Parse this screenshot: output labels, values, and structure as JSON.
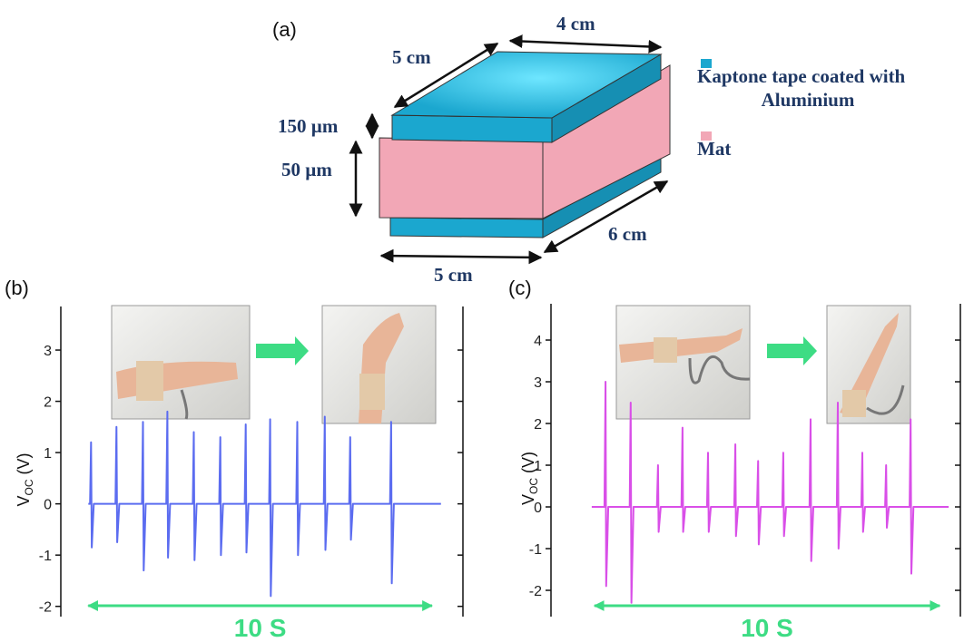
{
  "figure_a": {
    "panel_label": "(a)",
    "dimensions": {
      "top_width": "4 cm",
      "top_depth": "5 cm",
      "tape_thickness": "150 µm",
      "mat_thickness": "50 µm",
      "bottom_depth": "6 cm",
      "bottom_width": "5 cm"
    },
    "legend": [
      {
        "label": [
          "Kaptone tape coated with",
          "Aluminium"
        ],
        "color": "#1ba7cf"
      },
      {
        "label": [
          "Mat"
        ],
        "color": "#f2a7b6"
      }
    ]
  },
  "chart_data": [
    {
      "type": "line",
      "panel_label": "(b)",
      "ylabel": [
        "V",
        "OC",
        "(V)"
      ],
      "annotation": "10 S",
      "annotation_span": [
        0,
        10
      ],
      "xlim": [
        -0.8,
        10.9
      ],
      "ylim": [
        -2.2,
        3.85
      ],
      "yticks": [
        -2,
        -1,
        0,
        1,
        2,
        3
      ],
      "series": [
        {
          "color": "#5b6cf0",
          "x": [
            0,
            0.05,
            0.08,
            0.1,
            0.16,
            0.79,
            0.82,
            0.84,
            0.9,
            1.56,
            1.59,
            1.61,
            1.67,
            2.27,
            2.3,
            2.32,
            2.38,
            3.04,
            3.07,
            3.09,
            3.15,
            3.81,
            3.84,
            3.86,
            3.92,
            4.55,
            4.58,
            4.6,
            4.66,
            5.26,
            5.29,
            5.31,
            5.37,
            6.05,
            6.08,
            6.1,
            6.16,
            6.85,
            6.88,
            6.9,
            6.96,
            7.59,
            7.62,
            7.64,
            7.7,
            8.78,
            8.81,
            8.83,
            8.89,
            10.26
          ],
          "values": [
            0,
            0,
            1.2,
            -0.85,
            0,
            0,
            1.5,
            -0.75,
            0,
            0,
            1.6,
            -1.3,
            0,
            0,
            1.8,
            -1.05,
            0,
            0,
            1.4,
            -1.1,
            0,
            0,
            1.3,
            -1.0,
            0,
            0,
            1.55,
            -0.95,
            0,
            0,
            1.65,
            -1.8,
            0,
            0,
            1.6,
            -1.0,
            0,
            0,
            1.7,
            -0.9,
            0,
            0,
            1.3,
            -0.7,
            0,
            0,
            1.6,
            -1.55,
            0,
            0
          ]
        }
      ]
    },
    {
      "type": "line",
      "panel_label": "(c)",
      "ylabel": [
        "V",
        "OC",
        "(V)"
      ],
      "annotation": "10 S",
      "annotation_span": [
        0,
        10
      ],
      "xlim": [
        -1.26,
        10.6
      ],
      "ylim": [
        -2.63,
        4.87
      ],
      "yticks": [
        -2,
        -1,
        0,
        1,
        2,
        3,
        4
      ],
      "series": [
        {
          "color": "#d94fe8",
          "x": [
            -0.08,
            0.29,
            0.32,
            0.34,
            0.4,
            1.02,
            1.05,
            1.07,
            1.13,
            1.81,
            1.84,
            1.86,
            1.92,
            2.52,
            2.55,
            2.57,
            2.63,
            3.26,
            3.29,
            3.31,
            3.37,
            4.05,
            4.08,
            4.1,
            4.16,
            4.71,
            4.74,
            4.76,
            4.82,
            5.44,
            5.47,
            5.49,
            5.55,
            6.23,
            6.26,
            6.28,
            6.34,
            7.02,
            7.05,
            7.07,
            7.13,
            7.73,
            7.76,
            7.78,
            7.84,
            8.42,
            8.45,
            8.47,
            8.53,
            9.13,
            9.16,
            9.18,
            9.24,
            10.26
          ],
          "values": [
            0,
            0,
            3.0,
            -1.9,
            0,
            0,
            2.5,
            -2.3,
            0,
            0,
            1.0,
            -0.6,
            0,
            0,
            1.9,
            -0.6,
            0,
            0,
            1.3,
            -0.6,
            0,
            0,
            1.5,
            -0.7,
            0,
            0,
            1.1,
            -0.9,
            0,
            0,
            1.3,
            -0.7,
            0,
            0,
            2.1,
            -1.3,
            0,
            0,
            2.5,
            -1.0,
            0,
            0,
            1.3,
            -0.6,
            0,
            0,
            1.0,
            -0.5,
            0,
            0,
            2.1,
            -1.6,
            0,
            0
          ]
        }
      ]
    }
  ]
}
